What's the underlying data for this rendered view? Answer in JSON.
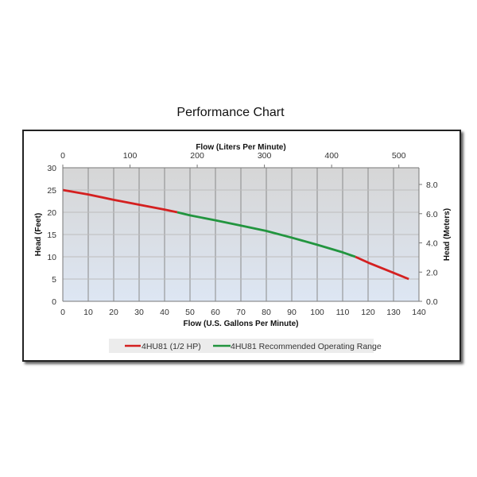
{
  "chart_data": {
    "type": "line",
    "title": "Performance Chart",
    "xlabel": "Flow (U.S. Gallons Per Minute)",
    "ylabel": "Head (Feet)",
    "x2label": "Flow (Liters Per Minute)",
    "y2label": "Head (Meters)",
    "xlim": [
      0,
      140
    ],
    "ylim": [
      0,
      30
    ],
    "x2lim": [
      0,
      530
    ],
    "y2lim": [
      0,
      9.144
    ],
    "xticks": [
      0,
      10,
      20,
      30,
      40,
      50,
      60,
      70,
      80,
      90,
      100,
      110,
      120,
      130,
      140
    ],
    "yticks": [
      0,
      5,
      10,
      15,
      20,
      25,
      30
    ],
    "x2ticks": [
      0,
      100,
      200,
      300,
      400,
      500
    ],
    "y2ticks": [
      "0.0",
      "2.0",
      "4.0",
      "6.0",
      "8.0"
    ],
    "grid": true,
    "legend_position": "bottom",
    "series": [
      {
        "name": "4HU81 (1/2 HP)",
        "color": "#d42020",
        "segments": [
          {
            "x": [
              0,
              10,
              20,
              30,
              40,
              45
            ],
            "y": [
              25,
              24,
              22.8,
              21.7,
              20.6,
              20
            ]
          },
          {
            "x": [
              115,
              120,
              130,
              136
            ],
            "y": [
              10,
              8.7,
              6.4,
              5
            ]
          }
        ]
      },
      {
        "name": "4HU81 Recommended Operating Range",
        "color": "#22953f",
        "segments": [
          {
            "x": [
              45,
              50,
              60,
              70,
              80,
              90,
              100,
              110,
              115
            ],
            "y": [
              20,
              19.3,
              18.2,
              17,
              15.8,
              14.3,
              12.7,
              11,
              10
            ]
          }
        ]
      }
    ]
  }
}
